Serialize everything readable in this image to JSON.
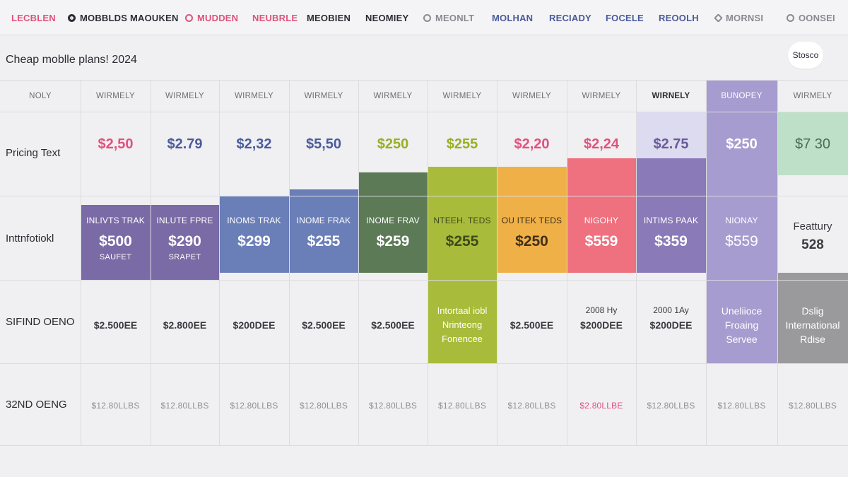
{
  "nav": [
    {
      "label": "LECBLEN",
      "color": "#e0527a",
      "icon": ""
    },
    {
      "label": "MOBBLDS",
      "color": "#2d2d35",
      "icon": "circle-dot-icon"
    },
    {
      "label": "MAOUKEN",
      "color": "#2d2d35",
      "icon": ""
    },
    {
      "label": "MUDDEN",
      "color": "#e0527a",
      "icon": "ring-icon"
    },
    {
      "label": "NEUBRLE",
      "color": "#e0527a",
      "icon": ""
    },
    {
      "label": "MEOBIEN",
      "color": "#2d2d35",
      "icon": ""
    },
    {
      "label": "NEOMIEY",
      "color": "#2d2d35",
      "icon": ""
    },
    {
      "label": "MEONLT",
      "color": "#8a8a92",
      "icon": "ring-icon"
    },
    {
      "label": "MOLHAN",
      "color": "#4a5b9a",
      "icon": ""
    },
    {
      "label": "RECIADY",
      "color": "#4a5b9a",
      "icon": ""
    },
    {
      "label": "FOCELE",
      "color": "#4a5b9a",
      "icon": ""
    },
    {
      "label": "REOOLH",
      "color": "#4a5b9a",
      "icon": ""
    },
    {
      "label": "MORNSI",
      "color": "#8a8a92",
      "icon": "diamond-icon"
    },
    {
      "label": "OONSEI",
      "color": "#8a8a92",
      "icon": "ring-icon"
    }
  ],
  "title": "Cheap moblle plans! 2024",
  "title_button": "Stosco",
  "row_labels": [
    "Pricing Text",
    "Inttnfotiokl",
    "SIFIND OENO",
    "32ND OENG"
  ],
  "headers": [
    "NOLY",
    "WIRMELY",
    "WIRMELY",
    "WIRMELY",
    "WIRMELY",
    "WIRMELY",
    "WIRMELY",
    "WIRMELY",
    "WIRMELY",
    "WIRNELY",
    "BUNOPEY",
    "WIRMELY"
  ],
  "prices": [
    {
      "text": "$2,50",
      "color": "#e0527a"
    },
    {
      "text": "$2.79",
      "color": "#4a5b9a"
    },
    {
      "text": "$2,32",
      "color": "#4a5b9a"
    },
    {
      "text": "$5,50",
      "color": "#4a5b9a"
    },
    {
      "text": "$250",
      "color": "#9aae24"
    },
    {
      "text": "$255",
      "color": "#9aae24"
    },
    {
      "text": "$2,20",
      "color": "#e0527a"
    },
    {
      "text": "$2,24",
      "color": "#e0527a"
    },
    {
      "text": "$2.75",
      "color": "#6a5a9a"
    },
    {
      "text": "$250",
      "color": "#ffffff"
    },
    {
      "text": "$7 30",
      "color": "#4a6a5a"
    }
  ],
  "info": [
    {
      "top": "INLIVTS TRAK",
      "price": "$500",
      "sub": "SAUFET",
      "color": "#ffffff"
    },
    {
      "top": "INLUTE FPRE",
      "price": "$290",
      "sub": "SRAPET",
      "color": "#ffffff"
    },
    {
      "top": "INOMS TRAK",
      "price": "$299",
      "sub": "",
      "color": "#ffffff"
    },
    {
      "top": "INOME FRAK",
      "price": "$255",
      "sub": "",
      "color": "#ffffff"
    },
    {
      "top": "INOME FRAV",
      "price": "$259",
      "sub": "",
      "color": "#ffffff"
    },
    {
      "top": "NTEEH. TEDS",
      "price": "$255",
      "sub": "",
      "color": "#3d4a1a"
    },
    {
      "top": "OU ITEK TEDS",
      "price": "$250",
      "sub": "",
      "color": "#3d3018"
    },
    {
      "top": "NIGOHY",
      "price": "$559",
      "sub": "",
      "color": "#ffffff"
    },
    {
      "top": "INTIMS PAAK",
      "price": "$359",
      "sub": "",
      "color": "#ffffff"
    },
    {
      "top": "NIONAY",
      "price": "$559",
      "sub": "",
      "color": "#ffffff"
    },
    {
      "top": "Feattury",
      "price": "528",
      "sub": "",
      "color": "#3a3a42"
    }
  ],
  "row3": [
    {
      "lines": [
        "$2.500EE"
      ]
    },
    {
      "lines": [
        "$2.800EE"
      ]
    },
    {
      "lines": [
        "$200DEE"
      ]
    },
    {
      "lines": [
        "$2.500EE"
      ]
    },
    {
      "lines": [
        "$2.500EE"
      ]
    },
    {
      "lines": [
        "Intortaal iobl",
        "Nrinteong",
        "Fonencee"
      ]
    },
    {
      "lines": [
        "$2.500EE"
      ]
    },
    {
      "lines": [
        "2008 Hy",
        "$200DEE"
      ]
    },
    {
      "lines": [
        "2000 1Ay",
        "$200DEE"
      ]
    },
    {
      "lines": [
        "Uneliioce",
        "Froaing",
        "Servee"
      ]
    },
    {
      "lines": [
        "Dslig",
        "International",
        "Rdise"
      ]
    }
  ],
  "row4": [
    {
      "text": "$12.80LLBS",
      "color": "#8f8f98"
    },
    {
      "text": "$12.80LLBS",
      "color": "#8f8f98"
    },
    {
      "text": "$12.80LLBS",
      "color": "#8f8f98"
    },
    {
      "text": "$12.80LLBS",
      "color": "#8f8f98"
    },
    {
      "text": "$12.80LLBS",
      "color": "#8f8f98"
    },
    {
      "text": "$12.80LLBS",
      "color": "#8f8f98"
    },
    {
      "text": "$12.80LLBS",
      "color": "#8f8f98"
    },
    {
      "text": "$2.80LLBE",
      "color": "#e0527a"
    },
    {
      "text": "$12.80LLBS",
      "color": "#8f8f98"
    },
    {
      "text": "$12.80LLBS",
      "color": "#8f8f98"
    },
    {
      "text": "$12.80LLBS",
      "color": "#8f8f98"
    }
  ],
  "palette": {
    "purple": "#7a6aa6",
    "blue": "#6a7eb8",
    "dark_green": "#5b7a55",
    "lime": "#a9bb3a",
    "orange": "#f0b048",
    "coral": "#ef707e",
    "violet": "#8a7ab8",
    "lavender": "#a79ccf",
    "grey": "#9a9a9c",
    "mint": "#bfe0c8"
  }
}
